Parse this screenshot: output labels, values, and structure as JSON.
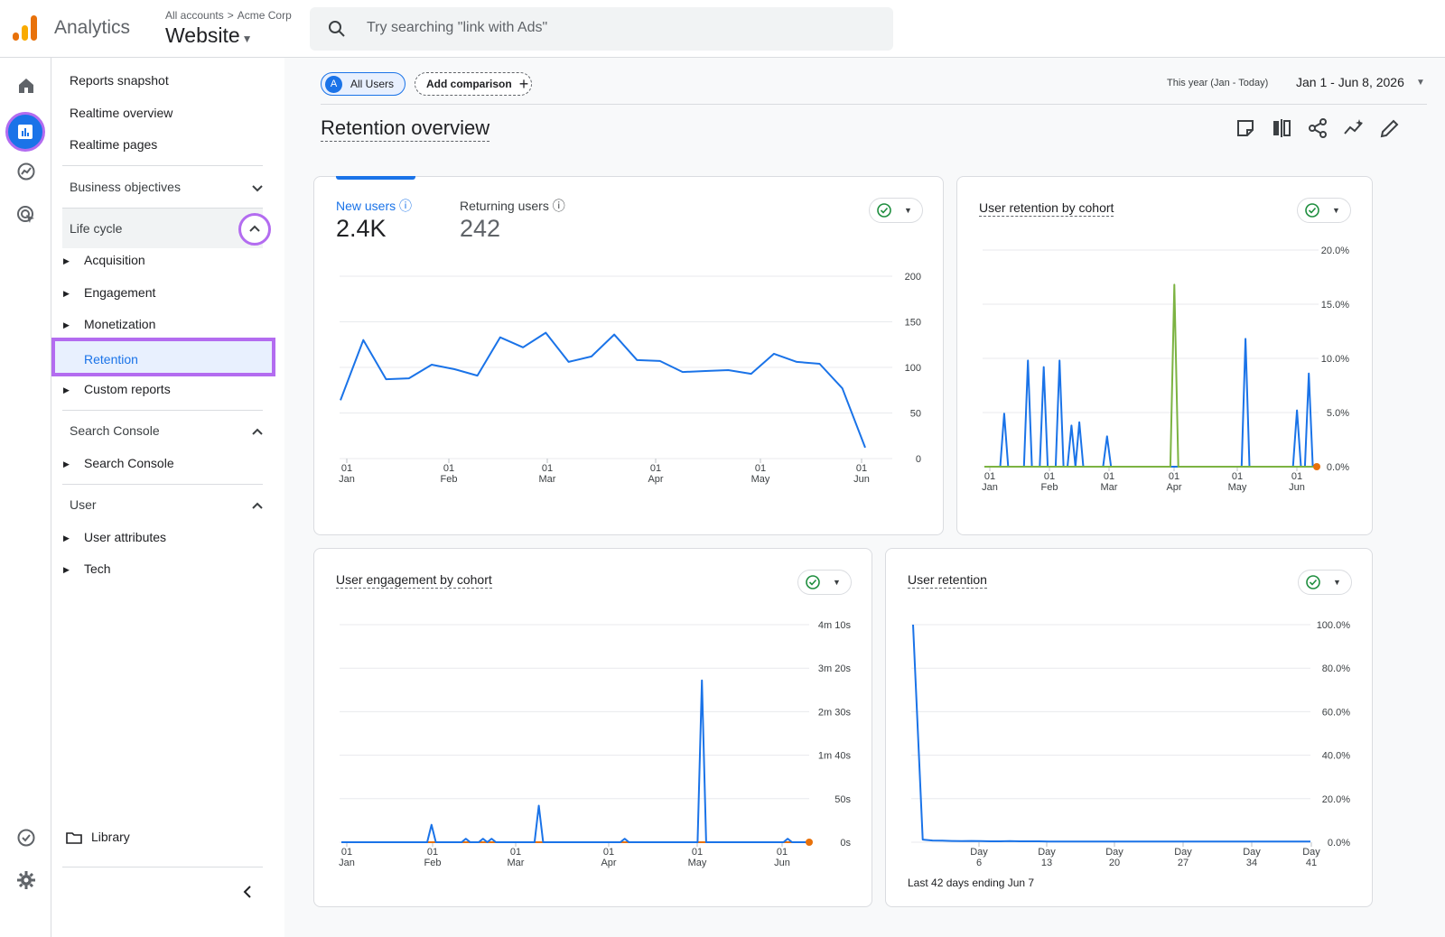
{
  "header": {
    "app_name": "Analytics",
    "breadcrumb_root": "All accounts",
    "breadcrumb_account": "Acme Corp",
    "property": "Website",
    "search_placeholder": "Try searching \"link with Ads\""
  },
  "nav": {
    "reports_snapshot": "Reports snapshot",
    "realtime_overview": "Realtime overview",
    "realtime_pages": "Realtime pages",
    "business_objectives": "Business objectives",
    "life_cycle": "Life cycle",
    "acquisition": "Acquisition",
    "engagement": "Engagement",
    "monetization": "Monetization",
    "retention": "Retention",
    "custom_reports": "Custom reports",
    "search_console_head": "Search Console",
    "search_console": "Search Console",
    "user_head": "User",
    "user_attributes": "User attributes",
    "tech": "Tech",
    "library": "Library"
  },
  "toolbar": {
    "all_users_avatar": "A",
    "all_users": "All Users",
    "add_comparison": "Add comparison",
    "add_plus": "+",
    "date_label": "This year (Jan - Today)",
    "date_range": "Jan 1 - Jun 8, 2026"
  },
  "page": {
    "title": "Retention overview"
  },
  "cards": {
    "users": {
      "new_label": "New users",
      "new_value": "2.4K",
      "returning_label": "Returning users",
      "returning_value": "242"
    },
    "retention_cohort": {
      "title": "User retention by cohort"
    },
    "engagement_cohort": {
      "title": "User engagement by cohort"
    },
    "user_retention": {
      "title": "User retention",
      "footnote": "Last 42 days ending Jun 7"
    }
  },
  "colors": {
    "accent": "#1a73e8",
    "highlight": "#b36cf0",
    "green": "#1e8e3e",
    "orange": "#e8710a",
    "series_green": "#7cb342"
  },
  "chart_data": [
    {
      "id": "users",
      "type": "line",
      "ylim": [
        0,
        200
      ],
      "yticks": [
        "200",
        "150",
        "100",
        "50",
        "0"
      ],
      "xticks": [
        [
          "01",
          "Jan"
        ],
        [
          "01",
          "Feb"
        ],
        [
          "01",
          "Mar"
        ],
        [
          "01",
          "Apr"
        ],
        [
          "01",
          "May"
        ],
        [
          "01",
          "Jun"
        ]
      ],
      "series": [
        {
          "color": "#1a73e8",
          "values": [
            64,
            130,
            87,
            88,
            103,
            98,
            91,
            133,
            122,
            138,
            106,
            112,
            136,
            108,
            107,
            95,
            96,
            97,
            93,
            115,
            106,
            104,
            77,
            12
          ]
        }
      ]
    },
    {
      "id": "retention_cohort",
      "type": "line",
      "ylim": [
        0,
        20
      ],
      "yticks": [
        "20.0%",
        "15.0%",
        "10.0%",
        "5.0%",
        "0.0%"
      ],
      "xticks": [
        [
          "01",
          "Jan"
        ],
        [
          "01",
          "Feb"
        ],
        [
          "01",
          "Mar"
        ],
        [
          "01",
          "Apr"
        ],
        [
          "01",
          "May"
        ],
        [
          "01",
          "Jun"
        ]
      ],
      "series": [
        {
          "color": "#1a73e8",
          "values": [
            0,
            0,
            0,
            0,
            0,
            4.9,
            0,
            0,
            0,
            0,
            0,
            9.8,
            0,
            0,
            0,
            9.2,
            0,
            0,
            0,
            9.8,
            0,
            0,
            3.8,
            0,
            4.1,
            0,
            0,
            0,
            0,
            0,
            0,
            2.8,
            0,
            0,
            0,
            0,
            0,
            0,
            0,
            0,
            0,
            0,
            0,
            0,
            0,
            0,
            0,
            0,
            0,
            0,
            0,
            0,
            0,
            0,
            0,
            0,
            0,
            0,
            0,
            0,
            0,
            0,
            0,
            0,
            0,
            0,
            11.8,
            0,
            0,
            0,
            0,
            0,
            0,
            0,
            0,
            0,
            0,
            0,
            0,
            5.2,
            0,
            0,
            8.6,
            0,
            0
          ]
        },
        {
          "color": "#7cb342",
          "values": [
            0,
            0,
            0,
            0,
            0,
            0,
            0,
            0,
            0,
            0,
            0,
            0,
            0,
            0,
            0,
            0,
            0,
            0,
            0,
            0,
            0,
            0,
            0,
            0,
            0,
            0,
            0,
            0,
            0,
            0,
            0,
            0,
            0,
            0,
            0,
            0,
            0,
            0,
            0,
            0,
            0,
            0,
            0,
            0,
            0,
            0,
            0,
            0,
            0,
            0,
            0,
            0,
            0,
            0,
            0,
            0,
            0,
            0,
            0,
            0,
            0,
            0,
            0,
            0,
            0,
            0,
            0,
            0,
            0,
            0,
            0,
            0,
            0,
            0,
            0,
            0,
            0,
            0,
            0,
            0,
            0,
            0,
            0,
            0,
            0
          ]
        },
        {
          "color": "#e8710a",
          "values": [
            0,
            0,
            0,
            0,
            0,
            0,
            0,
            0,
            0,
            0,
            0,
            0,
            0,
            0,
            0,
            0,
            0,
            0,
            0,
            0,
            0,
            0,
            0,
            0,
            0,
            0,
            0,
            0,
            0,
            0,
            0,
            0,
            0,
            0,
            0,
            0,
            0,
            0,
            0,
            0,
            0,
            0,
            0,
            0,
            0,
            0,
            0,
            0,
            0,
            0,
            0,
            0,
            0,
            0,
            0,
            0,
            0,
            0,
            0,
            0,
            0,
            0,
            0,
            0,
            0,
            0,
            0,
            0,
            0,
            0,
            0,
            0,
            0,
            0,
            0,
            0,
            0,
            0,
            0,
            0,
            0,
            0,
            0,
            0,
            0
          ]
        }
      ],
      "green_peak": {
        "index": 48,
        "value": 20
      }
    },
    {
      "id": "engagement_cohort",
      "type": "line",
      "ylim": [
        0,
        250
      ],
      "yticks": [
        "4m 10s",
        "3m 20s",
        "2m 30s",
        "1m 40s",
        "50s",
        "0s"
      ],
      "xticks": [
        [
          "01",
          "Jan"
        ],
        [
          "01",
          "Feb"
        ],
        [
          "01",
          "Mar"
        ],
        [
          "01",
          "Apr"
        ],
        [
          "01",
          "May"
        ],
        [
          "01",
          "Jun"
        ]
      ],
      "series": [
        {
          "color": "#1a73e8",
          "values": [
            0,
            0,
            0,
            0,
            0,
            0,
            0,
            0,
            0,
            0,
            0,
            0,
            0,
            0,
            0,
            0,
            0,
            0,
            0,
            0,
            0,
            0,
            0,
            0,
            0,
            0,
            0,
            0,
            0,
            0,
            0,
            0,
            0,
            0,
            0,
            0,
            0,
            0,
            0,
            0,
            0,
            0,
            0,
            0,
            0,
            0,
            0,
            0,
            0,
            0,
            0,
            0,
            0,
            0,
            0,
            0,
            0,
            0,
            0,
            0,
            0,
            0,
            0,
            0,
            0,
            0,
            0,
            0,
            0,
            0,
            0,
            0,
            0,
            0,
            0,
            0,
            0,
            0,
            0,
            0,
            0,
            0,
            0,
            0,
            0,
            0,
            0,
            0,
            0,
            0
          ]
        }
      ],
      "spikes": [
        {
          "index": 21,
          "value": 20
        },
        {
          "index": 29,
          "value": 4
        },
        {
          "index": 33,
          "value": 4
        },
        {
          "index": 35,
          "value": 4
        },
        {
          "index": 46,
          "value": 42
        },
        {
          "index": 66,
          "value": 4
        },
        {
          "index": 84,
          "value": 186
        },
        {
          "index": 104,
          "value": 4
        }
      ],
      "points": 110
    },
    {
      "id": "user_retention",
      "type": "line",
      "ylim": [
        0,
        100
      ],
      "yticks": [
        "100.0%",
        "80.0%",
        "60.0%",
        "40.0%",
        "20.0%",
        "0.0%"
      ],
      "xticks": [
        [
          "Day",
          "6"
        ],
        [
          "Day",
          "13"
        ],
        [
          "Day",
          "20"
        ],
        [
          "Day",
          "27"
        ],
        [
          "Day",
          "34"
        ],
        [
          "Day",
          "41"
        ]
      ],
      "series": [
        {
          "color": "#1a73e8",
          "values": [
            100,
            1.2,
            0.8,
            0.7,
            0.6,
            0.5,
            0.6,
            0.5,
            0.4,
            0.4,
            0.5,
            0.4,
            0.4,
            0.4,
            0.3,
            0.3,
            0.3,
            0.3,
            0.3,
            0.3,
            0.3,
            0.3,
            0.3,
            0.3,
            0.3,
            0.3,
            0.3,
            0.3,
            0.3,
            0.3,
            0.3,
            0.3,
            0.3,
            0.3,
            0.3,
            0.3,
            0.3,
            0.3,
            0.3,
            0.3,
            0.3,
            0.3
          ]
        }
      ]
    }
  ]
}
